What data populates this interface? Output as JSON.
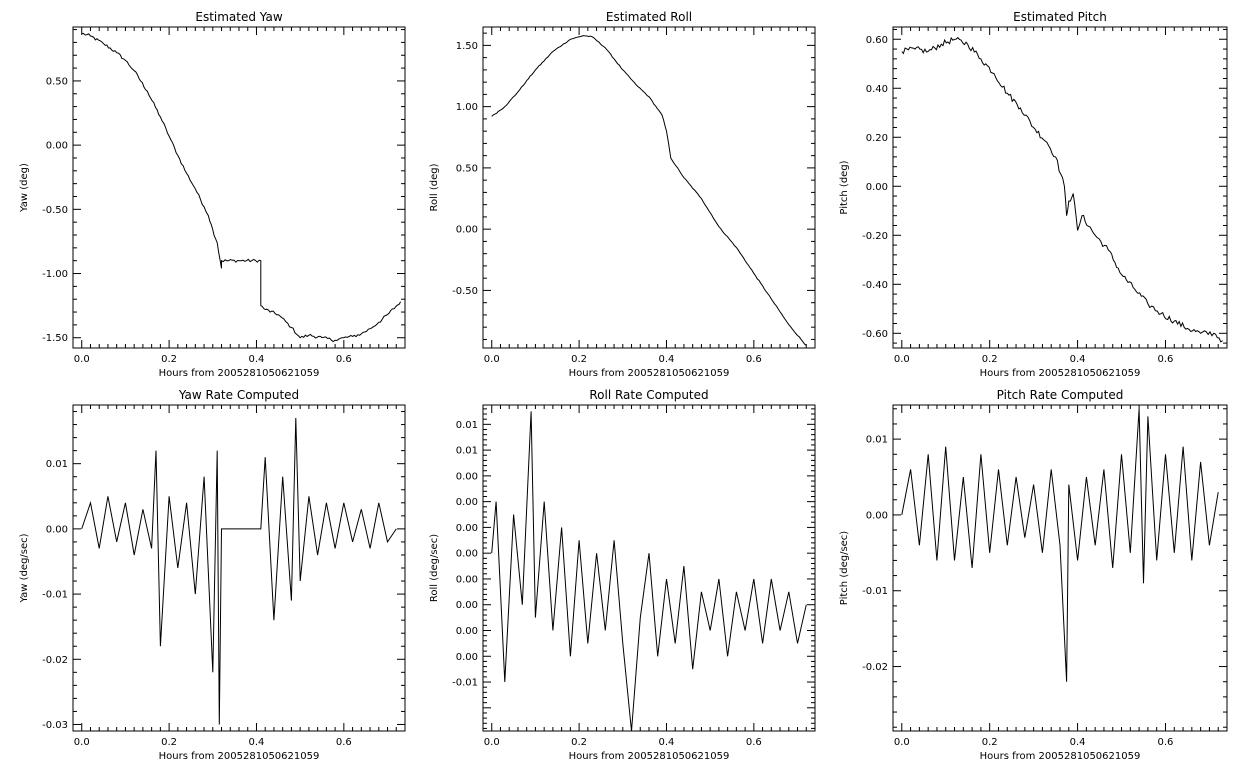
{
  "chart_data": [
    {
      "id": "yaw",
      "type": "line",
      "title": "Estimated Yaw",
      "xlabel": "Hours from 2005281050621059",
      "ylabel": "Yaw (deg)",
      "xlim": [
        -0.02,
        0.74
      ],
      "ylim": [
        -1.58,
        0.92
      ],
      "x_ticks": [
        0.0,
        0.2,
        0.4,
        0.6
      ],
      "x_tick_labels": [
        "0.0",
        "0.2",
        "0.4",
        "0.6"
      ],
      "y_ticks": [
        -1.5,
        -1.0,
        -0.5,
        0.0,
        0.5
      ],
      "y_tick_labels": [
        "-1.50",
        "-1.00",
        "-0.50",
        "0.00",
        "0.50"
      ],
      "series": [
        {
          "x": [
            0.0,
            0.02,
            0.05,
            0.08,
            0.1,
            0.12,
            0.15,
            0.18,
            0.2,
            0.22,
            0.24,
            0.26,
            0.28,
            0.29,
            0.3,
            0.31,
            0.32,
            0.32,
            0.41,
            0.41,
            0.42,
            0.45,
            0.48,
            0.5,
            0.52,
            0.55,
            0.58,
            0.6,
            0.62,
            0.64,
            0.66,
            0.68,
            0.7,
            0.73
          ],
          "y": [
            0.87,
            0.85,
            0.79,
            0.72,
            0.66,
            0.58,
            0.42,
            0.22,
            0.07,
            -0.08,
            -0.22,
            -0.34,
            -0.48,
            -0.55,
            -0.66,
            -0.76,
            -0.96,
            -0.9,
            -0.9,
            -1.25,
            -1.28,
            -1.32,
            -1.42,
            -1.5,
            -1.48,
            -1.5,
            -1.52,
            -1.5,
            -1.49,
            -1.47,
            -1.43,
            -1.38,
            -1.32,
            -1.22
          ],
          "noise": 0.012
        }
      ]
    },
    {
      "id": "roll",
      "type": "line",
      "title": "Estimated Roll",
      "xlabel": "Hours from 2005281050621059",
      "ylabel": "Roll (deg)",
      "xlim": [
        -0.02,
        0.74
      ],
      "ylim": [
        -0.97,
        1.65
      ],
      "x_ticks": [
        0.0,
        0.2,
        0.4,
        0.6
      ],
      "x_tick_labels": [
        "0.0",
        "0.2",
        "0.4",
        "0.6"
      ],
      "y_ticks": [
        -0.5,
        0.0,
        0.5,
        1.0,
        1.5
      ],
      "y_tick_labels": [
        "-0.50",
        "0.00",
        "0.50",
        "1.00",
        "1.50"
      ],
      "series": [
        {
          "x": [
            0.0,
            0.03,
            0.06,
            0.1,
            0.14,
            0.18,
            0.21,
            0.23,
            0.26,
            0.3,
            0.33,
            0.36,
            0.39,
            0.4,
            0.41,
            0.44,
            0.48,
            0.52,
            0.56,
            0.6,
            0.64,
            0.68,
            0.72
          ],
          "y": [
            0.92,
            1.0,
            1.12,
            1.3,
            1.45,
            1.55,
            1.58,
            1.57,
            1.48,
            1.3,
            1.18,
            1.08,
            0.93,
            0.8,
            0.58,
            0.42,
            0.25,
            0.02,
            -0.15,
            -0.36,
            -0.57,
            -0.78,
            -0.95
          ],
          "noise": 0.004
        }
      ]
    },
    {
      "id": "pitch",
      "type": "line",
      "title": "Estimated Pitch",
      "xlabel": "Hours from 2005281050621059",
      "ylabel": "Pitch (deg)",
      "xlim": [
        -0.02,
        0.74
      ],
      "ylim": [
        -0.66,
        0.65
      ],
      "x_ticks": [
        0.0,
        0.2,
        0.4,
        0.6
      ],
      "x_tick_labels": [
        "0.0",
        "0.2",
        "0.4",
        "0.6"
      ],
      "y_ticks": [
        -0.6,
        -0.4,
        -0.2,
        0.0,
        0.2,
        0.4,
        0.6
      ],
      "y_tick_labels": [
        "-0.60",
        "-0.40",
        "-0.20",
        "0.00",
        "0.20",
        "0.40",
        "0.60"
      ],
      "series": [
        {
          "x": [
            0.0,
            0.03,
            0.06,
            0.09,
            0.12,
            0.15,
            0.18,
            0.21,
            0.24,
            0.27,
            0.3,
            0.33,
            0.35,
            0.37,
            0.375,
            0.38,
            0.39,
            0.4,
            0.41,
            0.44,
            0.47,
            0.5,
            0.53,
            0.56,
            0.59,
            0.62,
            0.65,
            0.68,
            0.71,
            0.73
          ],
          "y": [
            0.55,
            0.56,
            0.55,
            0.58,
            0.6,
            0.58,
            0.52,
            0.46,
            0.38,
            0.32,
            0.24,
            0.18,
            0.12,
            0.0,
            -0.12,
            -0.06,
            -0.03,
            -0.18,
            -0.12,
            -0.2,
            -0.26,
            -0.36,
            -0.42,
            -0.48,
            -0.52,
            -0.55,
            -0.58,
            -0.6,
            -0.6,
            -0.63
          ],
          "noise": 0.012
        }
      ]
    },
    {
      "id": "yaw_rate",
      "type": "line",
      "title": "Yaw Rate Computed",
      "xlabel": "Hours from 2005281050621059",
      "ylabel": "Yaw (deg/sec)",
      "xlim": [
        -0.02,
        0.74
      ],
      "ylim": [
        -0.031,
        0.019
      ],
      "x_ticks": [
        0.0,
        0.2,
        0.4,
        0.6
      ],
      "x_tick_labels": [
        "0.0",
        "0.2",
        "0.4",
        "0.6"
      ],
      "y_ticks": [
        -0.03,
        -0.02,
        -0.01,
        0.0,
        0.01
      ],
      "y_tick_labels": [
        "-0.03",
        "-0.02",
        "-0.01",
        "0.00",
        "0.01"
      ],
      "series": [
        {
          "x": [
            0.0,
            0.02,
            0.04,
            0.06,
            0.08,
            0.1,
            0.12,
            0.14,
            0.16,
            0.17,
            0.18,
            0.2,
            0.22,
            0.24,
            0.26,
            0.28,
            0.3,
            0.31,
            0.315,
            0.32,
            0.41,
            0.42,
            0.44,
            0.46,
            0.48,
            0.49,
            0.5,
            0.52,
            0.54,
            0.56,
            0.58,
            0.6,
            0.62,
            0.64,
            0.66,
            0.68,
            0.7,
            0.72
          ],
          "y": [
            0.0,
            0.004,
            -0.003,
            0.005,
            -0.002,
            0.004,
            -0.004,
            0.003,
            -0.003,
            0.012,
            -0.018,
            0.005,
            -0.006,
            0.004,
            -0.01,
            0.008,
            -0.022,
            0.012,
            -0.03,
            0.0,
            0.0,
            0.011,
            -0.014,
            0.008,
            -0.011,
            0.017,
            -0.008,
            0.005,
            -0.004,
            0.004,
            -0.003,
            0.004,
            -0.002,
            0.003,
            -0.003,
            0.004,
            -0.002,
            0.0
          ],
          "noise": 0.0
        }
      ]
    },
    {
      "id": "roll_rate",
      "type": "line",
      "title": "Roll Rate Computed",
      "xlabel": "Hours from 2005281050621059",
      "ylabel": "Roll (deg/sec)",
      "xlim": [
        -0.02,
        0.74
      ],
      "ylim": [
        -0.0138,
        0.0115
      ],
      "x_ticks": [
        0.0,
        0.2,
        0.4,
        0.6
      ],
      "x_tick_labels": [
        "0.0",
        "0.2",
        "0.4",
        "0.6"
      ],
      "y_ticks": [
        -0.01,
        -0.008,
        -0.006,
        -0.004,
        -0.002,
        0.0,
        0.002,
        0.004,
        0.006,
        0.008,
        0.01
      ],
      "y_tick_labels": [
        "-0.01",
        "0.00",
        "0.00",
        "0.00",
        "0.00",
        "0.00",
        "0.00",
        "0.00",
        "0.00",
        "0.01",
        "0.01"
      ],
      "series": [
        {
          "x": [
            0.0,
            0.01,
            0.02,
            0.03,
            0.05,
            0.07,
            0.09,
            0.1,
            0.12,
            0.14,
            0.16,
            0.18,
            0.2,
            0.22,
            0.24,
            0.26,
            0.28,
            0.3,
            0.32,
            0.34,
            0.36,
            0.38,
            0.4,
            0.42,
            0.44,
            0.46,
            0.48,
            0.5,
            0.52,
            0.54,
            0.56,
            0.58,
            0.6,
            0.62,
            0.64,
            0.66,
            0.68,
            0.7,
            0.72
          ],
          "y": [
            0.0,
            0.004,
            -0.003,
            -0.01,
            0.003,
            -0.004,
            0.011,
            -0.005,
            0.004,
            -0.006,
            0.002,
            -0.008,
            0.001,
            -0.007,
            0.0,
            -0.006,
            0.001,
            -0.007,
            -0.0138,
            -0.005,
            0.0,
            -0.008,
            -0.002,
            -0.007,
            -0.001,
            -0.009,
            -0.003,
            -0.006,
            -0.002,
            -0.008,
            -0.003,
            -0.006,
            -0.002,
            -0.007,
            -0.002,
            -0.006,
            -0.003,
            -0.007,
            -0.004
          ],
          "noise": 0.0
        }
      ]
    },
    {
      "id": "pitch_rate",
      "type": "line",
      "title": "Pitch Rate Computed",
      "xlabel": "Hours from 2005281050621059",
      "ylabel": "Pitch (deg/sec)",
      "xlim": [
        -0.02,
        0.74
      ],
      "ylim": [
        -0.0285,
        0.0145
      ],
      "x_ticks": [
        0.0,
        0.2,
        0.4,
        0.6
      ],
      "x_tick_labels": [
        "0.0",
        "0.2",
        "0.4",
        "0.6"
      ],
      "y_ticks": [
        -0.02,
        -0.01,
        0.0,
        0.01
      ],
      "y_tick_labels": [
        "-0.02",
        "-0.01",
        "0.00",
        "0.01"
      ],
      "series": [
        {
          "x": [
            0.0,
            0.02,
            0.04,
            0.06,
            0.08,
            0.1,
            0.12,
            0.14,
            0.16,
            0.18,
            0.2,
            0.22,
            0.24,
            0.26,
            0.28,
            0.3,
            0.32,
            0.34,
            0.36,
            0.375,
            0.38,
            0.4,
            0.42,
            0.44,
            0.46,
            0.48,
            0.5,
            0.52,
            0.54,
            0.55,
            0.56,
            0.58,
            0.6,
            0.62,
            0.64,
            0.66,
            0.68,
            0.7,
            0.72
          ],
          "y": [
            0.0,
            0.006,
            -0.004,
            0.008,
            -0.006,
            0.009,
            -0.006,
            0.005,
            -0.007,
            0.008,
            -0.005,
            0.006,
            -0.004,
            0.005,
            -0.003,
            0.004,
            -0.005,
            0.006,
            -0.004,
            -0.022,
            0.004,
            -0.006,
            0.005,
            -0.004,
            0.006,
            -0.007,
            0.008,
            -0.005,
            0.014,
            -0.009,
            0.013,
            -0.006,
            0.008,
            -0.005,
            0.009,
            -0.006,
            0.007,
            -0.004,
            0.003
          ],
          "noise": 0.0
        }
      ]
    }
  ]
}
